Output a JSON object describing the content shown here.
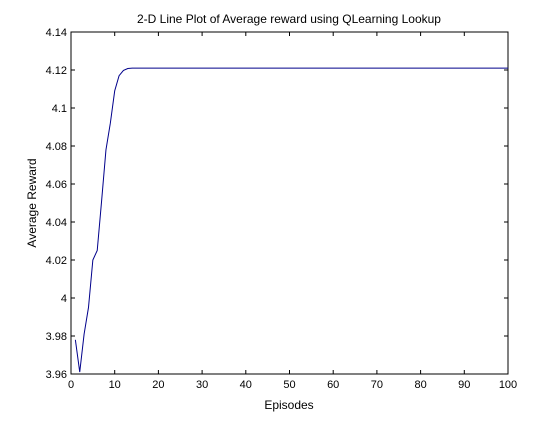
{
  "chart_data": {
    "type": "line",
    "title": "2-D Line Plot of Average reward using QLearning Lookup",
    "xlabel": "Episodes",
    "ylabel": "Average Reward",
    "xlim": [
      0,
      100
    ],
    "ylim": [
      3.96,
      4.14
    ],
    "xticks": [
      0,
      10,
      20,
      30,
      40,
      50,
      60,
      70,
      80,
      90,
      100
    ],
    "yticks": [
      3.96,
      3.98,
      4.0,
      4.02,
      4.04,
      4.06,
      4.08,
      4.1,
      4.12,
      4.14
    ],
    "xtick_labels": [
      "0",
      "10",
      "20",
      "30",
      "40",
      "50",
      "60",
      "70",
      "80",
      "90",
      "100"
    ],
    "ytick_labels": [
      "3.96",
      "3.98",
      "4",
      "4.02",
      "4.04",
      "4.06",
      "4.08",
      "4.1",
      "4.12",
      "4.14"
    ],
    "grid": false,
    "line_color": "#00008b",
    "series": [
      {
        "x": [
          1,
          2,
          3,
          4,
          5,
          6,
          7,
          8,
          9,
          10,
          11,
          12,
          13,
          14,
          15,
          20,
          30,
          40,
          50,
          60,
          70,
          80,
          90,
          100
        ],
        "y": [
          3.978,
          3.961,
          3.981,
          3.995,
          4.02,
          4.025,
          4.051,
          4.078,
          4.092,
          4.109,
          4.117,
          4.1198,
          4.1208,
          4.121,
          4.121,
          4.121,
          4.121,
          4.121,
          4.121,
          4.121,
          4.121,
          4.121,
          4.121,
          4.121
        ]
      }
    ]
  }
}
